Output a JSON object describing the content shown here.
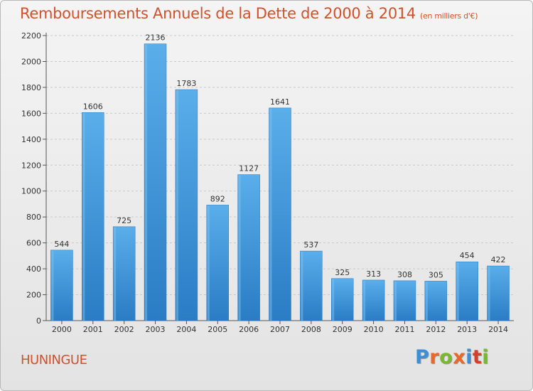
{
  "title": "Remboursements Annuels de la Dette de 2000 à 2014",
  "subtitle": "(en milliers d'€)",
  "commune": "HUNINGUE",
  "brand": {
    "letters": [
      "P",
      "r",
      "o",
      "x",
      "i",
      "t",
      "i"
    ],
    "colors": [
      "#3a8fd8",
      "#e8692a",
      "#7ab830",
      "#e8692a",
      "#3a8fd8",
      "#d6402a",
      "#7ab830"
    ]
  },
  "chart_data": {
    "type": "bar",
    "title": "Remboursements Annuels de la Dette de 2000 à 2014",
    "categories": [
      "2000",
      "2001",
      "2002",
      "2003",
      "2004",
      "2005",
      "2006",
      "2007",
      "2008",
      "2009",
      "2010",
      "2011",
      "2012",
      "2013",
      "2014"
    ],
    "values": [
      544,
      1606,
      725,
      2136,
      1783,
      892,
      1127,
      1641,
      537,
      325,
      313,
      308,
      305,
      454,
      422
    ],
    "ylim": [
      0,
      2200
    ],
    "yticks": [
      0,
      200,
      400,
      600,
      800,
      1000,
      1200,
      1400,
      1600,
      1800,
      2000,
      2200
    ],
    "grid": true,
    "bar_color": "#3a8fd8"
  }
}
